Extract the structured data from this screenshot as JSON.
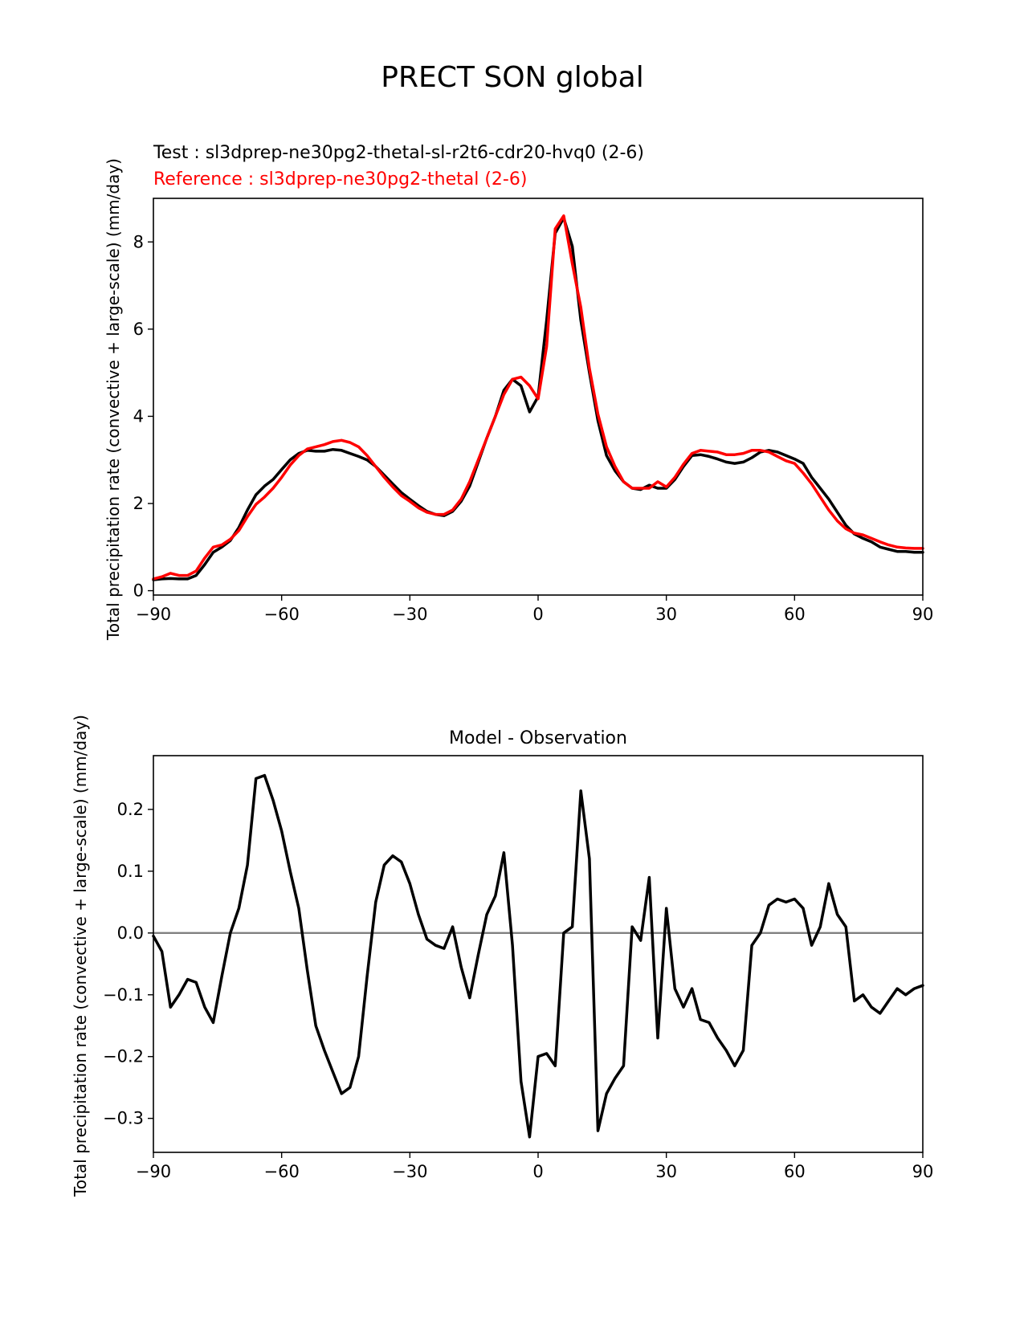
{
  "figure": {
    "suptitle": "PRECT SON global"
  },
  "colors": {
    "test": "#000000",
    "reference": "#ff0000",
    "zero_line": "#808080",
    "axes": "#000000"
  },
  "chart_data": [
    {
      "type": "line",
      "title": "",
      "legend_text": {
        "test": "Test : sl3dprep-ne30pg2-thetal-sl-r2t6-cdr20-hvq0 (2-6)",
        "reference": "Reference : sl3dprep-ne30pg2-thetal (2-6)"
      },
      "xlabel": "",
      "ylabel": "Total precipitation rate (convective + large-scale) (mm/day)",
      "xlim": [
        -90,
        90
      ],
      "ylim": [
        -0.1,
        9.0
      ],
      "xticks": [
        -90,
        -60,
        -30,
        0,
        30,
        60,
        90
      ],
      "xtick_labels": [
        "−90",
        "−60",
        "−30",
        "0",
        "30",
        "60",
        "90"
      ],
      "yticks": [
        0,
        2,
        4,
        6,
        8
      ],
      "ytick_labels": [
        "0",
        "2",
        "4",
        "6",
        "8"
      ],
      "series": [
        {
          "name": "Test",
          "color": "#000000",
          "x": [
            -90,
            -88,
            -86,
            -84,
            -82,
            -80,
            -78,
            -76,
            -74,
            -72,
            -70,
            -68,
            -66,
            -64,
            -62,
            -60,
            -58,
            -56,
            -54,
            -52,
            -50,
            -48,
            -46,
            -44,
            -42,
            -40,
            -38,
            -36,
            -34,
            -32,
            -30,
            -28,
            -26,
            -24,
            -22,
            -20,
            -18,
            -16,
            -14,
            -12,
            -10,
            -8,
            -6,
            -4,
            -2,
            0,
            2,
            4,
            6,
            8,
            10,
            12,
            14,
            16,
            18,
            20,
            22,
            24,
            26,
            28,
            30,
            32,
            34,
            36,
            38,
            40,
            42,
            44,
            46,
            48,
            50,
            52,
            54,
            56,
            58,
            60,
            62,
            64,
            66,
            68,
            70,
            72,
            74,
            76,
            78,
            80,
            82,
            84,
            86,
            88,
            90
          ],
          "y": [
            0.25,
            0.27,
            0.28,
            0.27,
            0.27,
            0.35,
            0.6,
            0.88,
            1.0,
            1.15,
            1.45,
            1.85,
            2.2,
            2.4,
            2.55,
            2.78,
            3.0,
            3.15,
            3.22,
            3.2,
            3.2,
            3.24,
            3.22,
            3.15,
            3.08,
            3.0,
            2.85,
            2.65,
            2.45,
            2.25,
            2.1,
            1.95,
            1.82,
            1.75,
            1.72,
            1.82,
            2.05,
            2.4,
            2.95,
            3.5,
            4.0,
            4.6,
            4.85,
            4.7,
            4.1,
            4.45,
            6.2,
            8.2,
            8.55,
            7.9,
            6.2,
            5.0,
            3.9,
            3.1,
            2.75,
            2.5,
            2.35,
            2.32,
            2.42,
            2.35,
            2.35,
            2.55,
            2.85,
            3.1,
            3.12,
            3.08,
            3.02,
            2.95,
            2.92,
            2.95,
            3.05,
            3.18,
            3.22,
            3.18,
            3.1,
            3.02,
            2.92,
            2.6,
            2.35,
            2.1,
            1.8,
            1.5,
            1.3,
            1.2,
            1.12,
            1.0,
            0.95,
            0.9,
            0.9,
            0.88,
            0.88
          ]
        },
        {
          "name": "Reference",
          "color": "#ff0000",
          "x": [
            -90,
            -88,
            -86,
            -84,
            -82,
            -80,
            -78,
            -76,
            -74,
            -72,
            -70,
            -68,
            -66,
            -64,
            -62,
            -60,
            -58,
            -56,
            -54,
            -52,
            -50,
            -48,
            -46,
            -44,
            -42,
            -40,
            -38,
            -36,
            -34,
            -32,
            -30,
            -28,
            -26,
            -24,
            -22,
            -20,
            -18,
            -16,
            -14,
            -12,
            -10,
            -8,
            -6,
            -4,
            -2,
            0,
            2,
            4,
            6,
            8,
            10,
            12,
            14,
            16,
            18,
            20,
            22,
            24,
            26,
            28,
            30,
            32,
            34,
            36,
            38,
            40,
            42,
            44,
            46,
            48,
            50,
            52,
            54,
            56,
            58,
            60,
            62,
            64,
            66,
            68,
            70,
            72,
            74,
            76,
            78,
            80,
            82,
            84,
            86,
            88,
            90
          ],
          "y": [
            0.27,
            0.32,
            0.4,
            0.35,
            0.35,
            0.45,
            0.75,
            1.0,
            1.05,
            1.18,
            1.38,
            1.7,
            1.98,
            2.15,
            2.35,
            2.6,
            2.88,
            3.1,
            3.25,
            3.3,
            3.35,
            3.42,
            3.45,
            3.4,
            3.3,
            3.1,
            2.85,
            2.6,
            2.38,
            2.18,
            2.05,
            1.9,
            1.8,
            1.75,
            1.75,
            1.85,
            2.1,
            2.5,
            3.0,
            3.5,
            4.0,
            4.5,
            4.85,
            4.9,
            4.7,
            4.4,
            5.6,
            8.3,
            8.6,
            7.5,
            6.5,
            5.1,
            4.05,
            3.3,
            2.85,
            2.5,
            2.35,
            2.35,
            2.35,
            2.5,
            2.38,
            2.6,
            2.9,
            3.15,
            3.22,
            3.2,
            3.18,
            3.12,
            3.12,
            3.15,
            3.22,
            3.22,
            3.18,
            3.08,
            2.98,
            2.92,
            2.7,
            2.45,
            2.15,
            1.85,
            1.6,
            1.42,
            1.32,
            1.28,
            1.2,
            1.12,
            1.05,
            1.0,
            0.98,
            0.97,
            0.97
          ]
        }
      ]
    },
    {
      "type": "line",
      "title": "Model - Observation",
      "xlabel": "",
      "ylabel": "Total precipitation rate (convective + large-scale) (mm/day)",
      "xlim": [
        -90,
        90
      ],
      "ylim": [
        -0.355,
        0.287
      ],
      "xticks": [
        -90,
        -60,
        -30,
        0,
        30,
        60,
        90
      ],
      "xtick_labels": [
        "−90",
        "−60",
        "−30",
        "0",
        "30",
        "60",
        "90"
      ],
      "yticks": [
        -0.3,
        -0.2,
        -0.1,
        0.0,
        0.1,
        0.2
      ],
      "ytick_labels": [
        "−0.3",
        "−0.2",
        "−0.1",
        "0.0",
        "0.1",
        "0.2"
      ],
      "zero_line": 0.0,
      "series": [
        {
          "name": "Model - Observation",
          "color": "#000000",
          "x": [
            -90,
            -88,
            -86,
            -84,
            -82,
            -80,
            -78,
            -76,
            -74,
            -72,
            -70,
            -68,
            -66,
            -64,
            -62,
            -60,
            -58,
            -56,
            -54,
            -52,
            -50,
            -48,
            -46,
            -44,
            -42,
            -40,
            -38,
            -36,
            -34,
            -32,
            -30,
            -28,
            -26,
            -24,
            -22,
            -20,
            -18,
            -16,
            -14,
            -12,
            -10,
            -8,
            -6,
            -4,
            -2,
            0,
            2,
            4,
            6,
            8,
            10,
            12,
            14,
            16,
            18,
            20,
            22,
            24,
            26,
            28,
            30,
            32,
            34,
            36,
            38,
            40,
            42,
            44,
            46,
            48,
            50,
            52,
            54,
            56,
            58,
            60,
            62,
            64,
            66,
            68,
            70,
            72,
            74,
            76,
            78,
            80,
            82,
            84,
            86,
            88,
            90
          ],
          "y": [
            -0.005,
            -0.03,
            -0.12,
            -0.1,
            -0.075,
            -0.08,
            -0.12,
            -0.145,
            -0.07,
            0.0,
            0.04,
            0.11,
            0.25,
            0.255,
            0.215,
            0.165,
            0.1,
            0.04,
            -0.06,
            -0.15,
            -0.19,
            -0.225,
            -0.26,
            -0.25,
            -0.2,
            -0.07,
            0.05,
            0.11,
            0.125,
            0.115,
            0.08,
            0.03,
            -0.01,
            -0.02,
            -0.025,
            0.01,
            -0.055,
            -0.105,
            -0.035,
            0.03,
            0.06,
            0.13,
            -0.02,
            -0.24,
            -0.33,
            -0.2,
            -0.195,
            -0.215,
            0.0,
            0.01,
            0.23,
            0.12,
            -0.32,
            -0.26,
            -0.235,
            -0.215,
            0.01,
            -0.012,
            0.09,
            -0.17,
            0.04,
            -0.09,
            -0.12,
            -0.09,
            -0.14,
            -0.145,
            -0.17,
            -0.19,
            -0.215,
            -0.19,
            -0.02,
            0.0,
            0.045,
            0.055,
            0.05,
            0.055,
            0.04,
            -0.02,
            0.01,
            0.08,
            0.03,
            0.01,
            -0.11,
            -0.1,
            -0.12,
            -0.13,
            -0.11,
            -0.09,
            -0.1,
            -0.09,
            -0.085
          ]
        }
      ]
    }
  ]
}
